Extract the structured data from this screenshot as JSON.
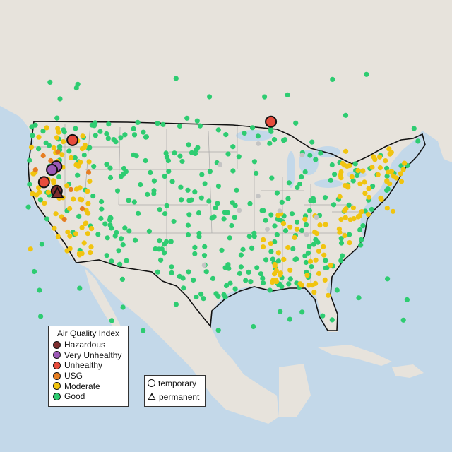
{
  "legend": {
    "title": "Air Quality Index",
    "categories": [
      {
        "label": "Hazardous",
        "color": "#7e2e2e"
      },
      {
        "label": "Very Unhealthy",
        "color": "#9b59b6"
      },
      {
        "label": "Unhealthy",
        "color": "#e74c3c"
      },
      {
        "label": "USG",
        "color": "#e67e22"
      },
      {
        "label": "Moderate",
        "color": "#f1c40f"
      },
      {
        "label": "Good",
        "color": "#2ecc71"
      }
    ],
    "site_types": [
      {
        "label": "temporary",
        "shape": "circle"
      },
      {
        "label": "permanent",
        "shape": "triangle"
      }
    ]
  },
  "map": {
    "colors": {
      "ocean": "#c3d8e9",
      "land": "#e7e3dc",
      "land_shade": "#dad6cf",
      "border": "#111111",
      "state_line": "#a9a9a9",
      "no_data": "#c4c4c4"
    },
    "large_markers": [
      {
        "category": "Hazardous",
        "shape": "circle",
        "lon": -121.6,
        "lat": 39.8
      },
      {
        "category": "Hazardous",
        "shape": "triangle",
        "lon": -121.4,
        "lat": 39.5
      },
      {
        "category": "Very Unhealthy",
        "shape": "circle",
        "lon": -122.7,
        "lat": 42.6
      },
      {
        "category": "Very Unhealthy",
        "shape": "circle",
        "lon": -123.2,
        "lat": 42.2
      },
      {
        "category": "Unhealthy",
        "shape": "circle",
        "lon": -121.5,
        "lat": 45.6
      },
      {
        "category": "Unhealthy",
        "shape": "circle",
        "lon": -123.8,
        "lat": 40.8
      },
      {
        "category": "Unhealthy",
        "shape": "circle",
        "lon": -90.2,
        "lat": 47.7
      }
    ]
  }
}
